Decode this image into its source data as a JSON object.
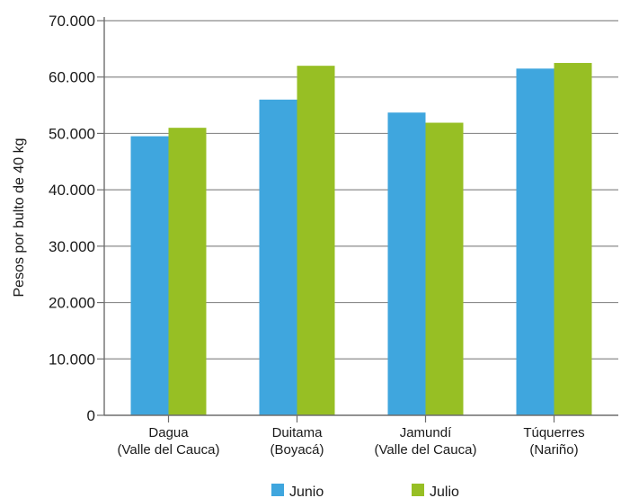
{
  "chart_data": {
    "type": "bar",
    "title": "",
    "xlabel": "",
    "ylabel": "Pesos por bulto de 40 kg",
    "ylim": [
      0,
      70000
    ],
    "yticks": [
      0,
      10000,
      20000,
      30000,
      40000,
      50000,
      60000,
      70000
    ],
    "ytick_labels": [
      "0",
      "10.000",
      "20.000",
      "30.000",
      "40.000",
      "50.000",
      "60.000",
      "70.000"
    ],
    "grid": true,
    "legend_position": "bottom",
    "categories": [
      [
        "Dagua",
        "(Valle del Cauca)"
      ],
      [
        "Duitama",
        "(Boyacá)"
      ],
      [
        "Jamundí",
        "(Valle del Cauca)"
      ],
      [
        "Túquerres",
        "(Nariño)"
      ]
    ],
    "series": [
      {
        "name": "Junio",
        "color": "#3fa6de",
        "values": [
          49500,
          56000,
          53700,
          61500
        ]
      },
      {
        "name": "Julio",
        "color": "#97bf24",
        "values": [
          51000,
          62000,
          51900,
          62500
        ]
      }
    ]
  }
}
